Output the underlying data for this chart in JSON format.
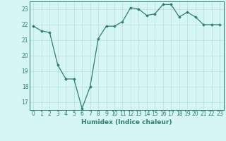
{
  "x": [
    0,
    1,
    2,
    3,
    4,
    5,
    6,
    7,
    8,
    9,
    10,
    11,
    12,
    13,
    14,
    15,
    16,
    17,
    18,
    19,
    20,
    21,
    22,
    23
  ],
  "y": [
    21.9,
    21.6,
    21.5,
    19.4,
    18.5,
    18.5,
    16.6,
    18.0,
    21.1,
    21.9,
    21.9,
    22.2,
    23.1,
    23.0,
    22.6,
    22.7,
    23.3,
    23.3,
    22.5,
    22.8,
    22.5,
    22.0,
    22.0,
    22.0
  ],
  "xlabel": "Humidex (Indice chaleur)",
  "ylim": [
    16.5,
    23.5
  ],
  "xlim": [
    -0.5,
    23.5
  ],
  "yticks": [
    17,
    18,
    19,
    20,
    21,
    22,
    23
  ],
  "xticks": [
    0,
    1,
    2,
    3,
    4,
    5,
    6,
    7,
    8,
    9,
    10,
    11,
    12,
    13,
    14,
    15,
    16,
    17,
    18,
    19,
    20,
    21,
    22,
    23
  ],
  "xtick_labels": [
    "0",
    "1",
    "2",
    "3",
    "4",
    "5",
    "6",
    "7",
    "8",
    "9",
    "10",
    "11",
    "12",
    "13",
    "14",
    "15",
    "16",
    "17",
    "18",
    "19",
    "20",
    "21",
    "22",
    "23"
  ],
  "line_color": "#2E7D6E",
  "marker": "D",
  "marker_size": 1.8,
  "bg_color": "#D6F5F5",
  "grid_color": "#B8DCDC",
  "line_width": 0.9,
  "tick_fontsize": 5.5,
  "xlabel_fontsize": 6.5
}
